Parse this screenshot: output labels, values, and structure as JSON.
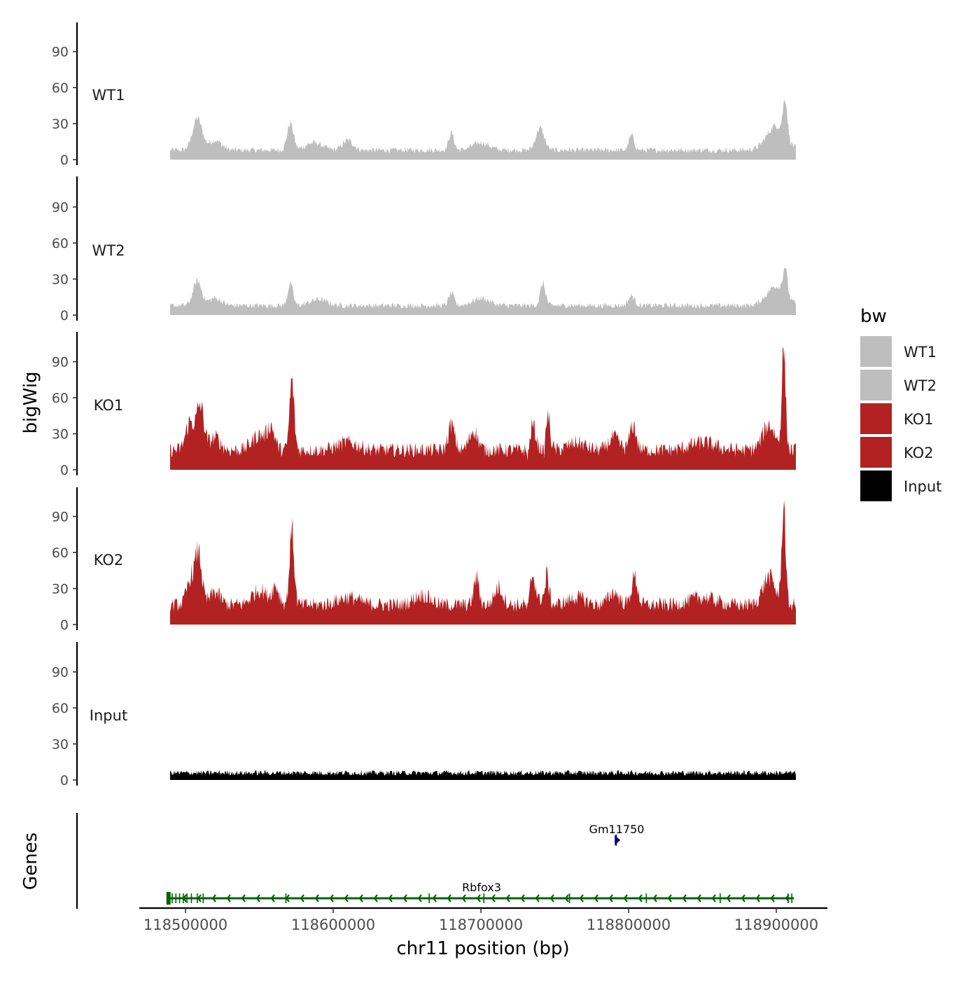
{
  "chart_data": {
    "type": "area",
    "ylabel": "bigWig",
    "genes_label": "Genes",
    "xlabel": "chr11 position (bp)",
    "x_ticks": [
      118500000,
      118600000,
      118700000,
      118800000,
      118900000
    ],
    "x_tick_labels": [
      "118500000",
      "118600000",
      "118700000",
      "118800000",
      "118900000"
    ],
    "x_range": [
      118488000,
      118914000
    ],
    "y_ticks": [
      0,
      30,
      60,
      90
    ],
    "y_tick_labels": [
      "0",
      "30",
      "60",
      "90"
    ],
    "ylim": [
      0,
      113
    ],
    "legend": {
      "title": "bw",
      "position": "right",
      "entries": [
        {
          "label": "WT1",
          "color": "#bebebe"
        },
        {
          "label": "WT2",
          "color": "#bebebe"
        },
        {
          "label": "KO1",
          "color": "#b22222"
        },
        {
          "label": "KO2",
          "color": "#b22222"
        },
        {
          "label": "Input",
          "color": "#000000"
        }
      ]
    },
    "series": [
      {
        "name": "WT1",
        "color": "#bebebe",
        "baseline": 7,
        "noise": 4,
        "peaks": [
          [
            118508000,
            26,
            4500
          ],
          [
            118520000,
            8,
            6000
          ],
          [
            118571000,
            22,
            3000
          ],
          [
            118587000,
            6,
            8000
          ],
          [
            118610000,
            8,
            5000
          ],
          [
            118680000,
            14,
            2500
          ],
          [
            118700000,
            6,
            8000
          ],
          [
            118740000,
            18,
            4000
          ],
          [
            118802000,
            12,
            2500
          ],
          [
            118900000,
            20,
            9000
          ],
          [
            118906000,
            30,
            2000
          ]
        ]
      },
      {
        "name": "WT2",
        "color": "#bebebe",
        "baseline": 7,
        "noise": 4,
        "peaks": [
          [
            118508000,
            20,
            4000
          ],
          [
            118520000,
            6,
            6000
          ],
          [
            118571000,
            18,
            2500
          ],
          [
            118590000,
            5,
            8000
          ],
          [
            118680000,
            10,
            2500
          ],
          [
            118700000,
            6,
            8000
          ],
          [
            118742000,
            18,
            2500
          ],
          [
            118802000,
            8,
            3000
          ],
          [
            118900000,
            16,
            9000
          ],
          [
            118906000,
            22,
            2000
          ]
        ]
      },
      {
        "name": "KO1",
        "color": "#b22222",
        "baseline": 14,
        "noise": 9,
        "peaks": [
          [
            118503000,
            22,
            4000
          ],
          [
            118510000,
            35,
            3500
          ],
          [
            118520000,
            10,
            5000
          ],
          [
            118550000,
            12,
            7000
          ],
          [
            118558000,
            16,
            3500
          ],
          [
            118572000,
            55,
            2200
          ],
          [
            118610000,
            6,
            10000
          ],
          [
            118680000,
            20,
            3000
          ],
          [
            118695000,
            16,
            4000
          ],
          [
            118735000,
            20,
            3000
          ],
          [
            118745000,
            28,
            2500
          ],
          [
            118765000,
            6,
            8000
          ],
          [
            118790000,
            10,
            5000
          ],
          [
            118803000,
            20,
            3000
          ],
          [
            118850000,
            6,
            12000
          ],
          [
            118895000,
            20,
            6000
          ],
          [
            118905000,
            80,
            1800
          ]
        ],
        "dips": [
          [
            118732000,
            10,
            1500
          ],
          [
            118743000,
            15,
            1200
          ]
        ]
      },
      {
        "name": "KO2",
        "color": "#b22222",
        "baseline": 14,
        "noise": 9,
        "peaks": [
          [
            118504000,
            22,
            4000
          ],
          [
            118509000,
            38,
            3000
          ],
          [
            118520000,
            10,
            5000
          ],
          [
            118550000,
            12,
            7000
          ],
          [
            118561000,
            14,
            3500
          ],
          [
            118572000,
            60,
            2200
          ],
          [
            118610000,
            6,
            10000
          ],
          [
            118660000,
            8,
            8000
          ],
          [
            118697000,
            22,
            2500
          ],
          [
            118712000,
            14,
            4000
          ],
          [
            118735000,
            24,
            3000
          ],
          [
            118744000,
            28,
            2500
          ],
          [
            118765000,
            6,
            8000
          ],
          [
            118790000,
            10,
            5000
          ],
          [
            118804000,
            22,
            3000
          ],
          [
            118850000,
            6,
            12000
          ],
          [
            118895000,
            22,
            6000
          ],
          [
            118905000,
            80,
            1800
          ]
        ],
        "dips": [
          [
            118732000,
            10,
            1500
          ],
          [
            118743000,
            15,
            1200
          ]
        ]
      },
      {
        "name": "Input",
        "color": "#000000",
        "baseline": 5,
        "noise": 4,
        "peaks": [],
        "dips": []
      }
    ],
    "genes": [
      {
        "name": "Rbfox3",
        "start": 118488000,
        "end": 118912000,
        "strand": "-",
        "color": "#006400",
        "exon_positions": [
          118488500,
          118491000,
          118493500,
          118496000,
          118498500,
          118501000,
          118504000,
          118508000,
          118512000,
          118568000,
          118665000,
          118702000,
          118760000,
          118812000,
          118862000,
          118908000,
          118910500
        ]
      },
      {
        "name": "Gm11750",
        "start": 118791000,
        "end": 118794000,
        "strand": "+",
        "color": "#00008b"
      }
    ]
  }
}
